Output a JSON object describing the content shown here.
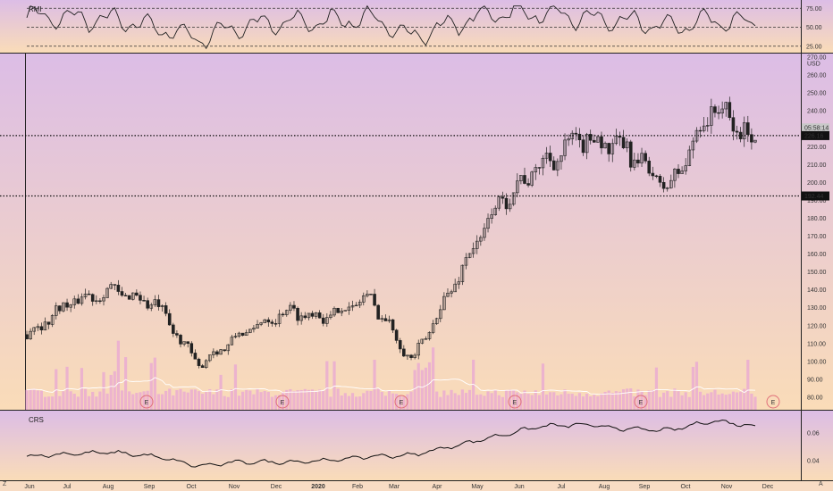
{
  "panels": {
    "rmi": {
      "label": "RMI",
      "ticks": [
        "75.00",
        "50.00",
        "25.00"
      ],
      "levels": [
        75,
        50,
        25
      ],
      "range": [
        20,
        80
      ]
    },
    "price": {
      "currency": "USD",
      "ticks": [
        "270.00",
        "260.00",
        "250.00",
        "240.00",
        "230.00",
        "220.00",
        "210.00",
        "200.00",
        "190.00",
        "180.00",
        "170.00",
        "160.00",
        "150.00",
        "140.00",
        "130.00",
        "120.00",
        "110.00",
        "100.00",
        "90.00",
        "80.00"
      ],
      "range": [
        73,
        272
      ],
      "countdown": "05:58:14",
      "last_price": "226.16",
      "support_label": "192.44",
      "resistance_level": 226.16,
      "support_level": 192.44
    },
    "crs": {
      "label": "CRS",
      "ticks": [
        "0.06",
        "0.04"
      ],
      "range": [
        0.027,
        0.075
      ]
    }
  },
  "time_axis": {
    "labels": [
      "Jun",
      "Jul",
      "Aug",
      "Sep",
      "Oct",
      "Nov",
      "Dec",
      "2020",
      "Feb",
      "Mar",
      "Apr",
      "May",
      "Jun",
      "Jul",
      "Aug",
      "Sep",
      "Oct",
      "Nov",
      "Dec"
    ]
  },
  "earnings_marker": "E",
  "corner_left": "Z",
  "corner_right": "A",
  "colors": {
    "bg_top": "#dcbde6",
    "bg_bottom": "#fadcb8",
    "candle": "#222222",
    "volume": "#e8a6d4",
    "volume_ma": "#ffffff",
    "earnings": "#e0707a"
  },
  "chart_data": [
    {
      "type": "line",
      "title": "RMI",
      "ylim": [
        20,
        80
      ],
      "ticks": [
        25,
        50,
        75
      ],
      "x": [
        "2019-06",
        "2019-07",
        "2019-08",
        "2019-09",
        "2019-10",
        "2019-11",
        "2019-12",
        "2020-01",
        "2020-02",
        "2020-03",
        "2020-04",
        "2020-05",
        "2020-06",
        "2020-07",
        "2020-08",
        "2020-09",
        "2020-10",
        "2020-11"
      ],
      "series": [
        {
          "values": [
            65,
            62,
            60,
            50,
            35,
            52,
            56,
            58,
            62,
            38,
            55,
            70,
            68,
            62,
            58,
            50,
            60,
            55
          ]
        }
      ]
    },
    {
      "type": "candlestick",
      "ylim": [
        73,
        272
      ],
      "x": [
        "2019-06",
        "2019-07",
        "2019-08",
        "2019-09",
        "2019-10",
        "2019-11",
        "2019-12",
        "2020-01",
        "2020-02",
        "2020-03",
        "2020-04",
        "2020-05",
        "2020-06",
        "2020-07",
        "2020-08",
        "2020-09",
        "2020-10",
        "2020-11"
      ],
      "series": [
        {
          "values": [
            115,
            133,
            140,
            132,
            98,
            115,
            128,
            125,
            136,
            100,
            145,
            188,
            210,
            225,
            218,
            196,
            243,
            222
          ]
        }
      ],
      "horizontal_lines": [
        226.16,
        192.44
      ]
    },
    {
      "type": "line",
      "title": "CRS",
      "ylim": [
        0.027,
        0.075
      ],
      "ticks": [
        0.04,
        0.06
      ],
      "x": [
        "2019-06",
        "2019-07",
        "2019-08",
        "2019-09",
        "2019-10",
        "2019-11",
        "2019-12",
        "2020-01",
        "2020-02",
        "2020-03",
        "2020-04",
        "2020-05",
        "2020-06",
        "2020-07",
        "2020-08",
        "2020-09",
        "2020-10",
        "2020-11"
      ],
      "series": [
        {
          "values": [
            0.043,
            0.045,
            0.046,
            0.043,
            0.036,
            0.039,
            0.039,
            0.04,
            0.043,
            0.044,
            0.051,
            0.058,
            0.065,
            0.066,
            0.063,
            0.062,
            0.069,
            0.065
          ]
        }
      ]
    }
  ]
}
